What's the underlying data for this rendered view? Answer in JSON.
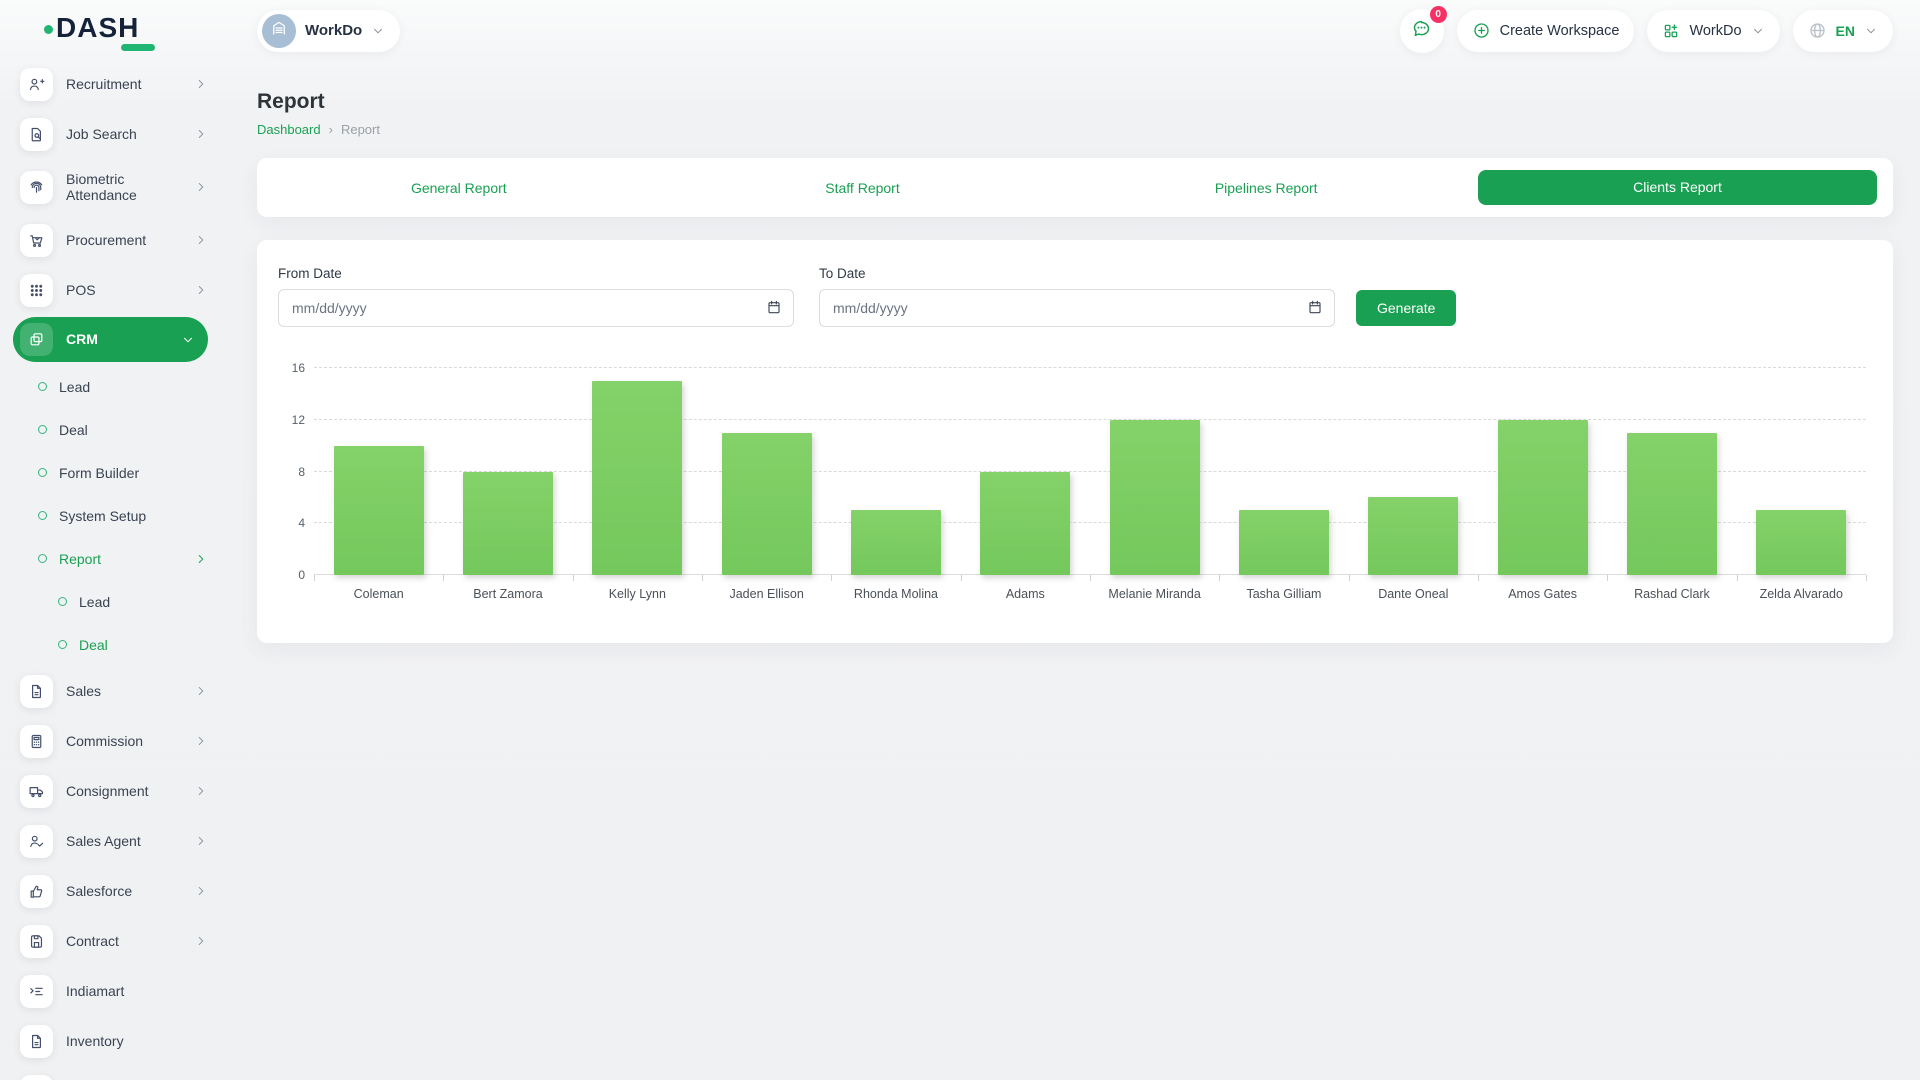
{
  "brand": {
    "logo_text": "DASH",
    "accent": "#1aa053"
  },
  "header": {
    "workspace_label": "WorkDo",
    "messages_badge": "0",
    "create_workspace_label": "Create Workspace",
    "company_menu_label": "WorkDo",
    "language": "EN"
  },
  "sidebar": {
    "items": [
      {
        "label": "Recruitment",
        "icon": "user-plus-icon",
        "type": "main",
        "chevron": "right"
      },
      {
        "label": "Job Search",
        "icon": "file-search-icon",
        "type": "main",
        "chevron": "right"
      },
      {
        "label": "Biometric Attendance",
        "icon": "fingerprint-icon",
        "type": "main",
        "chevron": "right",
        "twoline": true
      },
      {
        "label": "Procurement",
        "icon": "cart-icon",
        "type": "main",
        "chevron": "right"
      },
      {
        "label": "POS",
        "icon": "grid-dots-icon",
        "type": "main",
        "chevron": "right"
      },
      {
        "label": "CRM",
        "icon": "stack-icon",
        "type": "main",
        "chevron": "down",
        "active": true
      },
      {
        "label": "Lead",
        "type": "sub"
      },
      {
        "label": "Deal",
        "type": "sub"
      },
      {
        "label": "Form Builder",
        "type": "sub"
      },
      {
        "label": "System Setup",
        "type": "sub"
      },
      {
        "label": "Report",
        "type": "sub",
        "green": true,
        "chevron": "right"
      },
      {
        "label": "Lead",
        "type": "sub2"
      },
      {
        "label": "Deal",
        "type": "sub2",
        "green": true
      },
      {
        "label": "Sales",
        "icon": "file-icon",
        "type": "main",
        "chevron": "right"
      },
      {
        "label": "Commission",
        "icon": "calculator-icon",
        "type": "main",
        "chevron": "right"
      },
      {
        "label": "Consignment",
        "icon": "truck-icon",
        "type": "main",
        "chevron": "right"
      },
      {
        "label": "Sales Agent",
        "icon": "user-check-icon",
        "type": "main",
        "chevron": "right"
      },
      {
        "label": "Salesforce",
        "icon": "thumbs-up-icon",
        "type": "main",
        "chevron": "right"
      },
      {
        "label": "Contract",
        "icon": "floppy-icon",
        "type": "main",
        "chevron": "right"
      },
      {
        "label": "Indiamart",
        "icon": "list-arrow-icon",
        "type": "main"
      },
      {
        "label": "Inventory",
        "icon": "file-icon",
        "type": "main"
      },
      {
        "label": "",
        "icon": "file-icon",
        "type": "main",
        "partial": true
      }
    ]
  },
  "page": {
    "title": "Report",
    "breadcrumb": {
      "root": "Dashboard",
      "current": "Report"
    }
  },
  "tabs": {
    "items": [
      {
        "label": "General Report"
      },
      {
        "label": "Staff Report"
      },
      {
        "label": "Pipelines Report"
      },
      {
        "label": "Clients Report",
        "active": true
      }
    ]
  },
  "form": {
    "from_label": "From Date",
    "to_label": "To Date",
    "date_placeholder": "mm/dd/yyyy",
    "from_value": "",
    "to_value": "",
    "generate_label": "Generate"
  },
  "chart_data": {
    "type": "bar",
    "title": "",
    "xlabel": "",
    "ylabel": "",
    "categories": [
      "Coleman",
      "Bert Zamora",
      "Kelly Lynn",
      "Jaden Ellison",
      "Rhonda Molina",
      "Adams",
      "Melanie Miranda",
      "Tasha Gilliam",
      "Dante Oneal",
      "Amos Gates",
      "Rashad Clark",
      "Zelda Alvarado"
    ],
    "values": [
      10,
      8,
      15,
      11,
      5,
      8,
      12,
      5,
      6,
      12,
      11,
      5
    ],
    "ylim": [
      0,
      16
    ],
    "yticks": [
      0,
      4,
      8,
      12,
      16
    ],
    "bar_color": "#77ca5f",
    "grid": "horizontal-dashed",
    "legend": "none"
  }
}
